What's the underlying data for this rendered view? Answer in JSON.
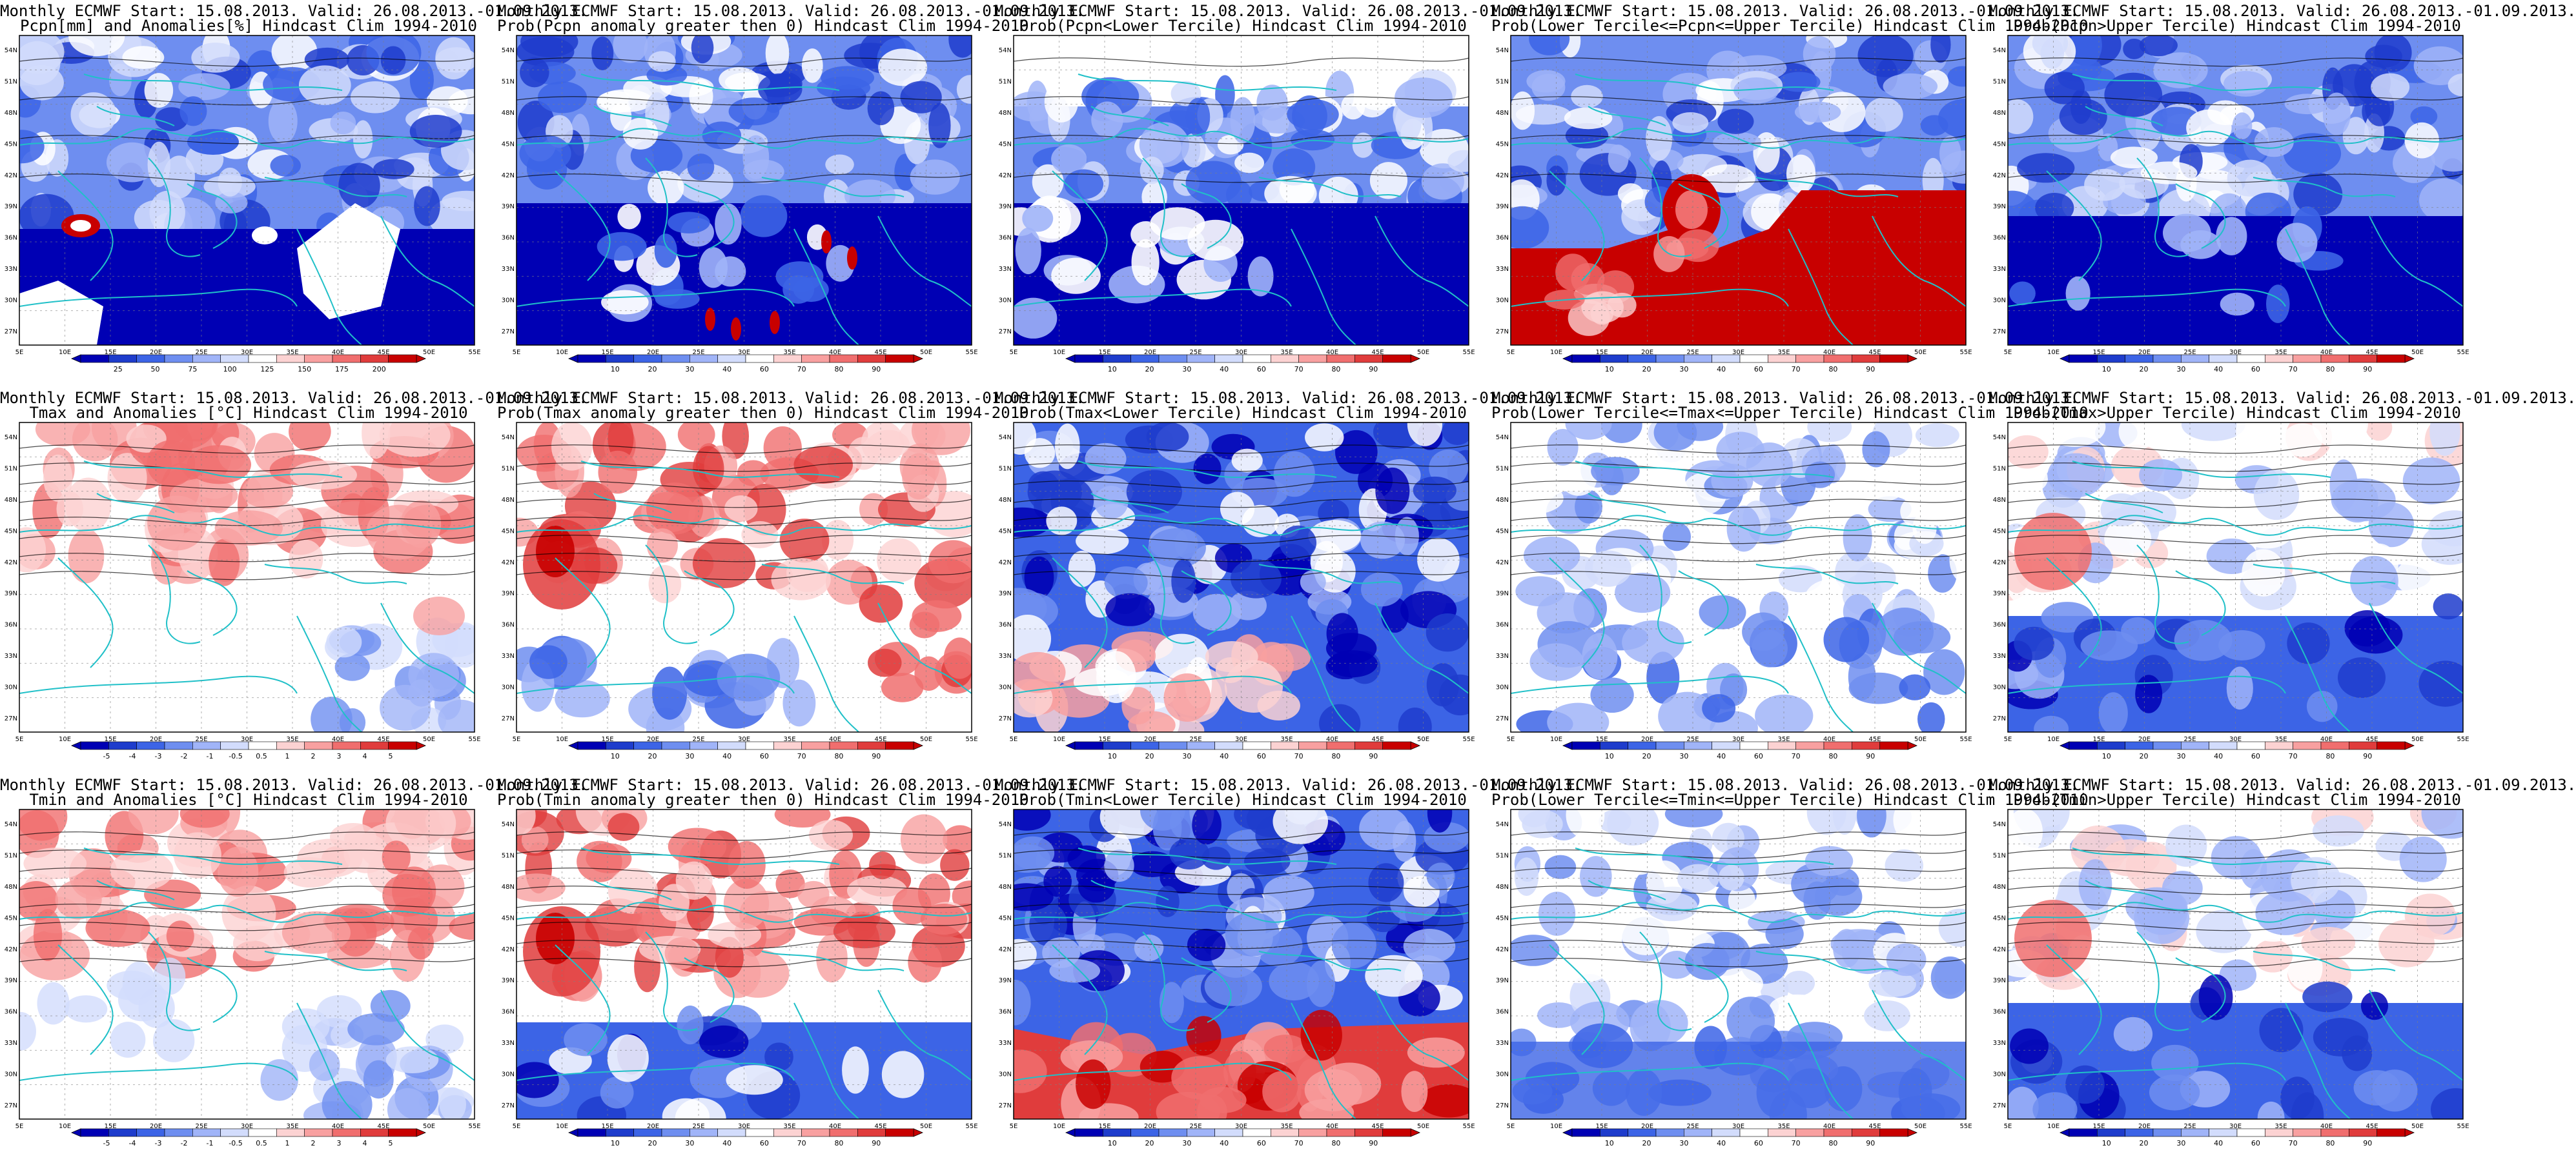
{
  "panels": [
    {
      "id": "r1c1",
      "title1": "Monthly ECMWF Start: 15.08.2013. Valid: 26.08.2013.-01.09.2013.",
      "title2": "Pcpn[mm] and Anomalies[%] Hindcast Clim 1994-2010",
      "scheme": "precip_anom",
      "cbar": {
        "colors": [
          "#0000b4",
          "#1e3ccc",
          "#3c64e6",
          "#6e8ef0",
          "#a0b4f8",
          "#d2dcfc",
          "#ffffff",
          "#fcd2d2",
          "#f8a0a0",
          "#f06e6e",
          "#e03c3c",
          "#c80000"
        ],
        "labels": [
          "25",
          "50",
          "75",
          "100",
          "125",
          "150",
          "175",
          "200"
        ]
      }
    },
    {
      "id": "r1c2",
      "title1": "Monthly ECMWF Start: 15.08.2013. Valid: 26.08.2013.-01.09.2013.",
      "title2": "Prob(Pcpn anomaly greater then 0) Hindcast Clim 1994-2010",
      "scheme": "precip_prob",
      "cbar": {
        "colors": [
          "#0000b4",
          "#1e3ccc",
          "#3c64e6",
          "#6e8ef0",
          "#a0b4f8",
          "#d2dcfc",
          "#ffffff",
          "#fcd2d2",
          "#f8a0a0",
          "#f06e6e",
          "#e03c3c",
          "#c80000"
        ],
        "labels": [
          "10",
          "20",
          "30",
          "40",
          "60",
          "70",
          "80",
          "90"
        ]
      }
    },
    {
      "id": "r1c3",
      "title1": "Monthly ECMWF Start: 15.08.2013. Valid: 26.08.2013.-01.09.2013.",
      "title2": "Prob(Pcpn<Lower Tercile) Hindcast Clim 1994-2010",
      "scheme": "precip_lower",
      "cbar": {
        "colors": [
          "#0000b4",
          "#1e3ccc",
          "#3c64e6",
          "#6e8ef0",
          "#a0b4f8",
          "#d2dcfc",
          "#ffffff",
          "#fcd2d2",
          "#f8a0a0",
          "#f06e6e",
          "#e03c3c",
          "#c80000"
        ],
        "labels": [
          "10",
          "20",
          "30",
          "40",
          "60",
          "70",
          "80",
          "90"
        ]
      }
    },
    {
      "id": "r1c4",
      "title1": "Monthly ECMWF Start: 15.08.2013. Valid: 26.08.2013.-01.09.2013.",
      "title2": "Prob(Lower Tercile<=Pcpn<=Upper Tercile) Hindcast Clim 1994-2010",
      "scheme": "precip_mid",
      "cbar": {
        "colors": [
          "#0000b4",
          "#1e3ccc",
          "#3c64e6",
          "#6e8ef0",
          "#a0b4f8",
          "#d2dcfc",
          "#ffffff",
          "#fcd2d2",
          "#f8a0a0",
          "#f06e6e",
          "#e03c3c",
          "#c80000"
        ],
        "labels": [
          "10",
          "20",
          "30",
          "40",
          "60",
          "70",
          "80",
          "90"
        ]
      }
    },
    {
      "id": "r1c5",
      "title1": "Monthly ECMWF Start: 15.08.2013. Valid: 26.08.2013.-01.09.2013.",
      "title2": "Prob(Pcpn>Upper Tercile) Hindcast Clim 1994-2010",
      "scheme": "precip_upper",
      "cbar": {
        "colors": [
          "#0000b4",
          "#1e3ccc",
          "#3c64e6",
          "#6e8ef0",
          "#a0b4f8",
          "#d2dcfc",
          "#ffffff",
          "#fcd2d2",
          "#f8a0a0",
          "#f06e6e",
          "#e03c3c",
          "#c80000"
        ],
        "labels": [
          "10",
          "20",
          "30",
          "40",
          "60",
          "70",
          "80",
          "90"
        ]
      }
    },
    {
      "id": "r2c1",
      "title1": "Monthly ECMWF Start: 15.08.2013. Valid: 26.08.2013.-01.09.2013.",
      "title2": "Tmax and Anomalies [°C] Hindcast Clim 1994-2010",
      "scheme": "temp_anom",
      "cbar": {
        "colors": [
          "#0000b4",
          "#1e3ccc",
          "#3c64e6",
          "#6e8ef0",
          "#a0b4f8",
          "#d2dcfc",
          "#ffffff",
          "#fcd2d2",
          "#f8a0a0",
          "#f06e6e",
          "#e03c3c",
          "#c80000"
        ],
        "labels": [
          "-5",
          "-4",
          "-3",
          "-2",
          "-1",
          "-0.5",
          "0.5",
          "1",
          "2",
          "3",
          "4",
          "5"
        ]
      }
    },
    {
      "id": "r2c2",
      "title1": "Monthly ECMWF Start: 15.08.2013. Valid: 26.08.2013.-01.09.2013.",
      "title2": "Prob(Tmax anomaly greater then 0) Hindcast Clim 1994-2010",
      "scheme": "temp_prob",
      "cbar": {
        "colors": [
          "#0000b4",
          "#1e3ccc",
          "#3c64e6",
          "#6e8ef0",
          "#a0b4f8",
          "#d2dcfc",
          "#ffffff",
          "#fcd2d2",
          "#f8a0a0",
          "#f06e6e",
          "#e03c3c",
          "#c80000"
        ],
        "labels": [
          "10",
          "20",
          "30",
          "40",
          "60",
          "70",
          "80",
          "90"
        ]
      }
    },
    {
      "id": "r2c3",
      "title1": "Monthly ECMWF Start: 15.08.2013. Valid: 26.08.2013.-01.09.2013.",
      "title2": "Prob(Tmax<Lower Tercile) Hindcast Clim 1994-2010",
      "scheme": "temp_lower",
      "cbar": {
        "colors": [
          "#0000b4",
          "#1e3ccc",
          "#3c64e6",
          "#6e8ef0",
          "#a0b4f8",
          "#d2dcfc",
          "#ffffff",
          "#fcd2d2",
          "#f8a0a0",
          "#f06e6e",
          "#e03c3c",
          "#c80000"
        ],
        "labels": [
          "10",
          "20",
          "30",
          "40",
          "60",
          "70",
          "80",
          "90"
        ]
      }
    },
    {
      "id": "r2c4",
      "title1": "Monthly ECMWF Start: 15.08.2013. Valid: 26.08.2013.-01.09.2013.",
      "title2": "Prob(Lower Tercile<=Tmax<=Upper Tercile) Hindcast Clim 1994-2010",
      "scheme": "temp_mid",
      "cbar": {
        "colors": [
          "#0000b4",
          "#1e3ccc",
          "#3c64e6",
          "#6e8ef0",
          "#a0b4f8",
          "#d2dcfc",
          "#ffffff",
          "#fcd2d2",
          "#f8a0a0",
          "#f06e6e",
          "#e03c3c",
          "#c80000"
        ],
        "labels": [
          "10",
          "20",
          "30",
          "40",
          "60",
          "70",
          "80",
          "90"
        ]
      }
    },
    {
      "id": "r2c5",
      "title1": "Monthly ECMWF Start: 15.08.2013. Valid: 26.08.2013.-01.09.2013.",
      "title2": "Prob(Tmax>Upper Tercile) Hindcast Clim 1994-2010",
      "scheme": "temp_upper",
      "cbar": {
        "colors": [
          "#0000b4",
          "#1e3ccc",
          "#3c64e6",
          "#6e8ef0",
          "#a0b4f8",
          "#d2dcfc",
          "#ffffff",
          "#fcd2d2",
          "#f8a0a0",
          "#f06e6e",
          "#e03c3c",
          "#c80000"
        ],
        "labels": [
          "10",
          "20",
          "30",
          "40",
          "60",
          "70",
          "80",
          "90"
        ]
      }
    },
    {
      "id": "r3c1",
      "title1": "Monthly ECMWF Start: 15.08.2013. Valid: 26.08.2013.-01.09.2013.",
      "title2": "Tmin and Anomalies [°C] Hindcast Clim 1994-2010",
      "scheme": "tmin_anom",
      "cbar": {
        "colors": [
          "#0000b4",
          "#1e3ccc",
          "#3c64e6",
          "#6e8ef0",
          "#a0b4f8",
          "#d2dcfc",
          "#ffffff",
          "#fcd2d2",
          "#f8a0a0",
          "#f06e6e",
          "#e03c3c",
          "#c80000"
        ],
        "labels": [
          "-5",
          "-4",
          "-3",
          "-2",
          "-1",
          "-0.5",
          "0.5",
          "1",
          "2",
          "3",
          "4",
          "5"
        ]
      }
    },
    {
      "id": "r3c2",
      "title1": "Monthly ECMWF Start: 15.08.2013. Valid: 26.08.2013.-01.09.2013.",
      "title2": "Prob(Tmin anomaly greater then 0) Hindcast Clim 1994-2010",
      "scheme": "tmin_prob",
      "cbar": {
        "colors": [
          "#0000b4",
          "#1e3ccc",
          "#3c64e6",
          "#6e8ef0",
          "#a0b4f8",
          "#d2dcfc",
          "#ffffff",
          "#fcd2d2",
          "#f8a0a0",
          "#f06e6e",
          "#e03c3c",
          "#c80000"
        ],
        "labels": [
          "10",
          "20",
          "30",
          "40",
          "60",
          "70",
          "80",
          "90"
        ]
      }
    },
    {
      "id": "r3c3",
      "title1": "Monthly ECMWF Start: 15.08.2013. Valid: 26.08.2013.-01.09.2013.",
      "title2": "Prob(Tmin<Lower Tercile) Hindcast Clim 1994-2010",
      "scheme": "tmin_lower",
      "cbar": {
        "colors": [
          "#0000b4",
          "#1e3ccc",
          "#3c64e6",
          "#6e8ef0",
          "#a0b4f8",
          "#d2dcfc",
          "#ffffff",
          "#fcd2d2",
          "#f8a0a0",
          "#f06e6e",
          "#e03c3c",
          "#c80000"
        ],
        "labels": [
          "10",
          "20",
          "30",
          "40",
          "60",
          "70",
          "80",
          "90"
        ]
      }
    },
    {
      "id": "r3c4",
      "title1": "Monthly ECMWF Start: 15.08.2013. Valid: 26.08.2013.-01.09.2013.",
      "title2": "Prob(Lower Tercile<=Tmin<=Upper Tercile) Hindcast Clim 1994-2010",
      "scheme": "tmin_mid",
      "cbar": {
        "colors": [
          "#0000b4",
          "#1e3ccc",
          "#3c64e6",
          "#6e8ef0",
          "#a0b4f8",
          "#d2dcfc",
          "#ffffff",
          "#fcd2d2",
          "#f8a0a0",
          "#f06e6e",
          "#e03c3c",
          "#c80000"
        ],
        "labels": [
          "10",
          "20",
          "30",
          "40",
          "60",
          "70",
          "80",
          "90"
        ]
      }
    },
    {
      "id": "r3c5",
      "title1": "Monthly ECMWF Start: 15.08.2013. Valid: 26.08.2013.-01.09.2013.",
      "title2": "Prob(Tmin>Upper Tercile) Hindcast Clim 1994-2010",
      "scheme": "tmin_upper",
      "cbar": {
        "colors": [
          "#0000b4",
          "#1e3ccc",
          "#3c64e6",
          "#6e8ef0",
          "#a0b4f8",
          "#d2dcfc",
          "#ffffff",
          "#fcd2d2",
          "#f8a0a0",
          "#f06e6e",
          "#e03c3c",
          "#c80000"
        ],
        "labels": [
          "10",
          "20",
          "30",
          "40",
          "60",
          "70",
          "80",
          "90"
        ]
      }
    }
  ],
  "axes": {
    "lon_labels": [
      "5E",
      "10E",
      "15E",
      "20E",
      "25E",
      "30E",
      "35E",
      "40E",
      "45E",
      "50E",
      "55E"
    ],
    "lat_labels": [
      "54N",
      "51N",
      "48N",
      "45N",
      "42N",
      "39N",
      "36N",
      "33N",
      "30N",
      "27N"
    ]
  },
  "colors": {
    "coast": "#20c0c8",
    "contour": "#000000",
    "grid": "#808080"
  }
}
